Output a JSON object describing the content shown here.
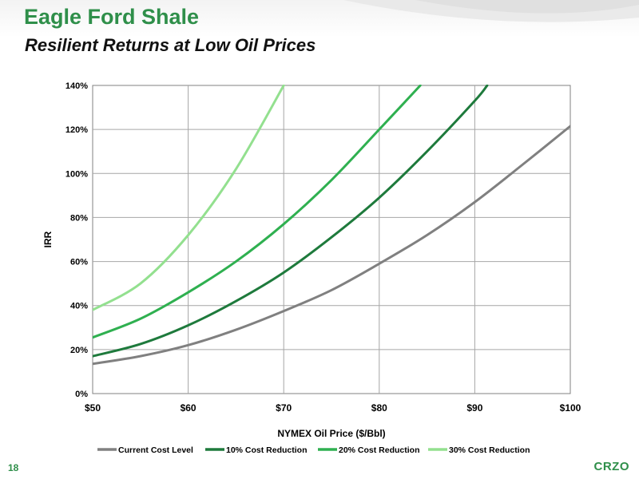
{
  "slide": {
    "title": "Eagle Ford Shale",
    "subtitle": "Resilient Returns at Low Oil Prices",
    "page_number": "18",
    "logo_text": "CRZO",
    "accent_color": "#2f8f4a"
  },
  "chart_data": {
    "type": "line",
    "title": "",
    "xlabel": "NYMEX Oil Price ($/Bbl)",
    "ylabel": "IRR",
    "xlim": [
      50,
      100
    ],
    "ylim": [
      0,
      140
    ],
    "x_ticks": [
      50,
      60,
      70,
      80,
      90,
      100
    ],
    "x_tick_labels": [
      "$50",
      "$60",
      "$70",
      "$80",
      "$90",
      "$100"
    ],
    "y_ticks": [
      0,
      20,
      40,
      60,
      80,
      100,
      120,
      140
    ],
    "y_tick_labels": [
      "0%",
      "20%",
      "40%",
      "60%",
      "80%",
      "100%",
      "120%",
      "140%"
    ],
    "grid": true,
    "legend_position": "bottom",
    "series": [
      {
        "name": "Current Cost Level",
        "color": "#808080",
        "x": [
          50,
          55,
          60,
          65,
          70,
          75,
          80,
          85,
          90,
          95,
          100
        ],
        "y": [
          13.5,
          17,
          22,
          29,
          37.5,
          47,
          59,
          72,
          87,
          104,
          121.5
        ]
      },
      {
        "name": "10% Cost Reduction",
        "color": "#1e7a3c",
        "x": [
          50,
          55,
          60,
          65,
          70,
          75,
          80,
          85,
          90,
          91.3
        ],
        "y": [
          17,
          22.5,
          31,
          42,
          55,
          71,
          89,
          110,
          133,
          140
        ]
      },
      {
        "name": "20% Cost Reduction",
        "color": "#2fb050",
        "x": [
          50,
          55,
          60,
          65,
          70,
          75,
          80,
          84.3
        ],
        "y": [
          25.5,
          34,
          46,
          60,
          77,
          97,
          120,
          140
        ]
      },
      {
        "name": "30% Cost Reduction",
        "color": "#93e08f",
        "x": [
          50,
          55,
          60,
          65,
          70
        ],
        "y": [
          38,
          50,
          72,
          102,
          140
        ]
      }
    ]
  }
}
